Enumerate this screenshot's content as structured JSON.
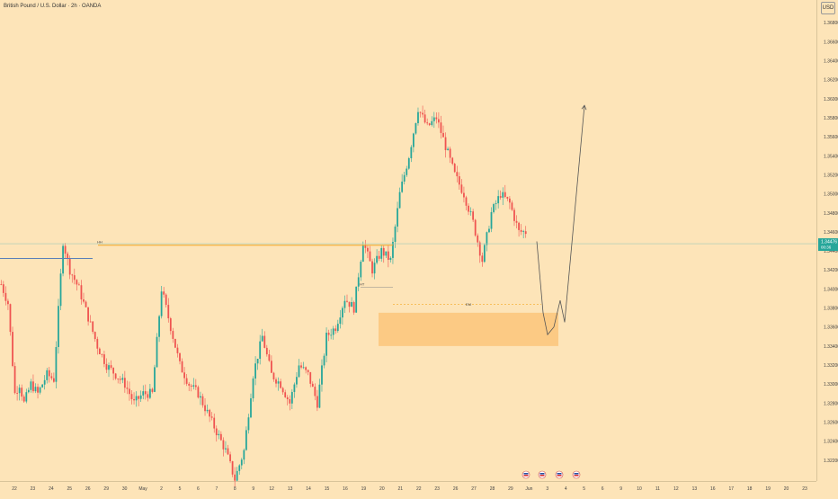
{
  "header": {
    "title": "British Pound / U.S. Dollar · 2h · OANDA",
    "currency": "USD"
  },
  "price_axis": {
    "current_price": "1.34476",
    "countdown": "00:36",
    "current_price_color": "#26a69a"
  },
  "colors": {
    "background": "#fde4b8",
    "up_candle": "#26a69a",
    "down_candle": "#ef5350",
    "level_line": "#f5a623",
    "blue_line": "#5b7fb8",
    "zone_fill": "#fbc67a",
    "projection": "#555555"
  },
  "annotations": {
    "high_label_1": "HH",
    "high_label_2": "HT",
    "zone_label": "EM"
  },
  "chart_data": {
    "type": "candlestick",
    "title": "British Pound / U.S. Dollar · 2h · OANDA",
    "y_ticks": [
      "1.36800",
      "1.36600",
      "1.36400",
      "1.36200",
      "1.36000",
      "1.35800",
      "1.35600",
      "1.35400",
      "1.35200",
      "1.35000",
      "1.34800",
      "1.34600",
      "1.34400",
      "1.34200",
      "1.34000",
      "1.33800",
      "1.33600",
      "1.33400",
      "1.33200",
      "1.33000",
      "1.32800",
      "1.32600",
      "1.32400",
      "1.32200"
    ],
    "x_ticks": [
      "22",
      "23",
      "24",
      "25",
      "26",
      "29",
      "30",
      "May",
      "2",
      "5",
      "6",
      "7",
      "8",
      "9",
      "12",
      "13",
      "14",
      "15",
      "16",
      "19",
      "20",
      "21",
      "22",
      "23",
      "26",
      "27",
      "28",
      "29",
      "Jun",
      "3",
      "4",
      "5",
      "6",
      "9",
      "10",
      "11",
      "12",
      "13",
      "16",
      "17",
      "18",
      "19",
      "20",
      "23"
    ],
    "ylim": [
      1.32,
      1.37
    ],
    "price_path": [
      [
        0,
        1.3405
      ],
      [
        3,
        1.3385
      ],
      [
        6,
        1.329
      ],
      [
        8,
        1.33
      ],
      [
        10,
        1.328
      ],
      [
        13,
        1.33
      ],
      [
        16,
        1.329
      ],
      [
        20,
        1.331
      ],
      [
        23,
        1.3305
      ],
      [
        27,
        1.345
      ],
      [
        30,
        1.342
      ],
      [
        34,
        1.34
      ],
      [
        38,
        1.337
      ],
      [
        42,
        1.334
      ],
      [
        46,
        1.332
      ],
      [
        50,
        1.331
      ],
      [
        54,
        1.33
      ],
      [
        58,
        1.328
      ],
      [
        62,
        1.329
      ],
      [
        66,
        1.329
      ],
      [
        70,
        1.34
      ],
      [
        74,
        1.336
      ],
      [
        78,
        1.332
      ],
      [
        82,
        1.33
      ],
      [
        86,
        1.329
      ],
      [
        90,
        1.327
      ],
      [
        94,
        1.325
      ],
      [
        98,
        1.323
      ],
      [
        102,
        1.32
      ],
      [
        106,
        1.323
      ],
      [
        110,
        1.331
      ],
      [
        114,
        1.335
      ],
      [
        118,
        1.331
      ],
      [
        122,
        1.33
      ],
      [
        126,
        1.328
      ],
      [
        130,
        1.332
      ],
      [
        134,
        1.331
      ],
      [
        138,
        1.328
      ],
      [
        142,
        1.335
      ],
      [
        146,
        1.336
      ],
      [
        150,
        1.339
      ],
      [
        154,
        1.338
      ],
      [
        158,
        1.345
      ],
      [
        162,
        1.342
      ],
      [
        166,
        1.344
      ],
      [
        170,
        1.343
      ],
      [
        174,
        1.35
      ],
      [
        178,
        1.354
      ],
      [
        182,
        1.359
      ],
      [
        186,
        1.357
      ],
      [
        190,
        1.358
      ],
      [
        194,
        1.355
      ],
      [
        198,
        1.352
      ],
      [
        202,
        1.35
      ],
      [
        206,
        1.347
      ],
      [
        210,
        1.343
      ],
      [
        214,
        1.348
      ],
      [
        218,
        1.35
      ],
      [
        222,
        1.349
      ],
      [
        226,
        1.346
      ]
    ],
    "key_level": 1.3446,
    "current_price": 1.34476,
    "demand_zone": [
      1.334,
      1.3375
    ],
    "target": 1.3593
  }
}
